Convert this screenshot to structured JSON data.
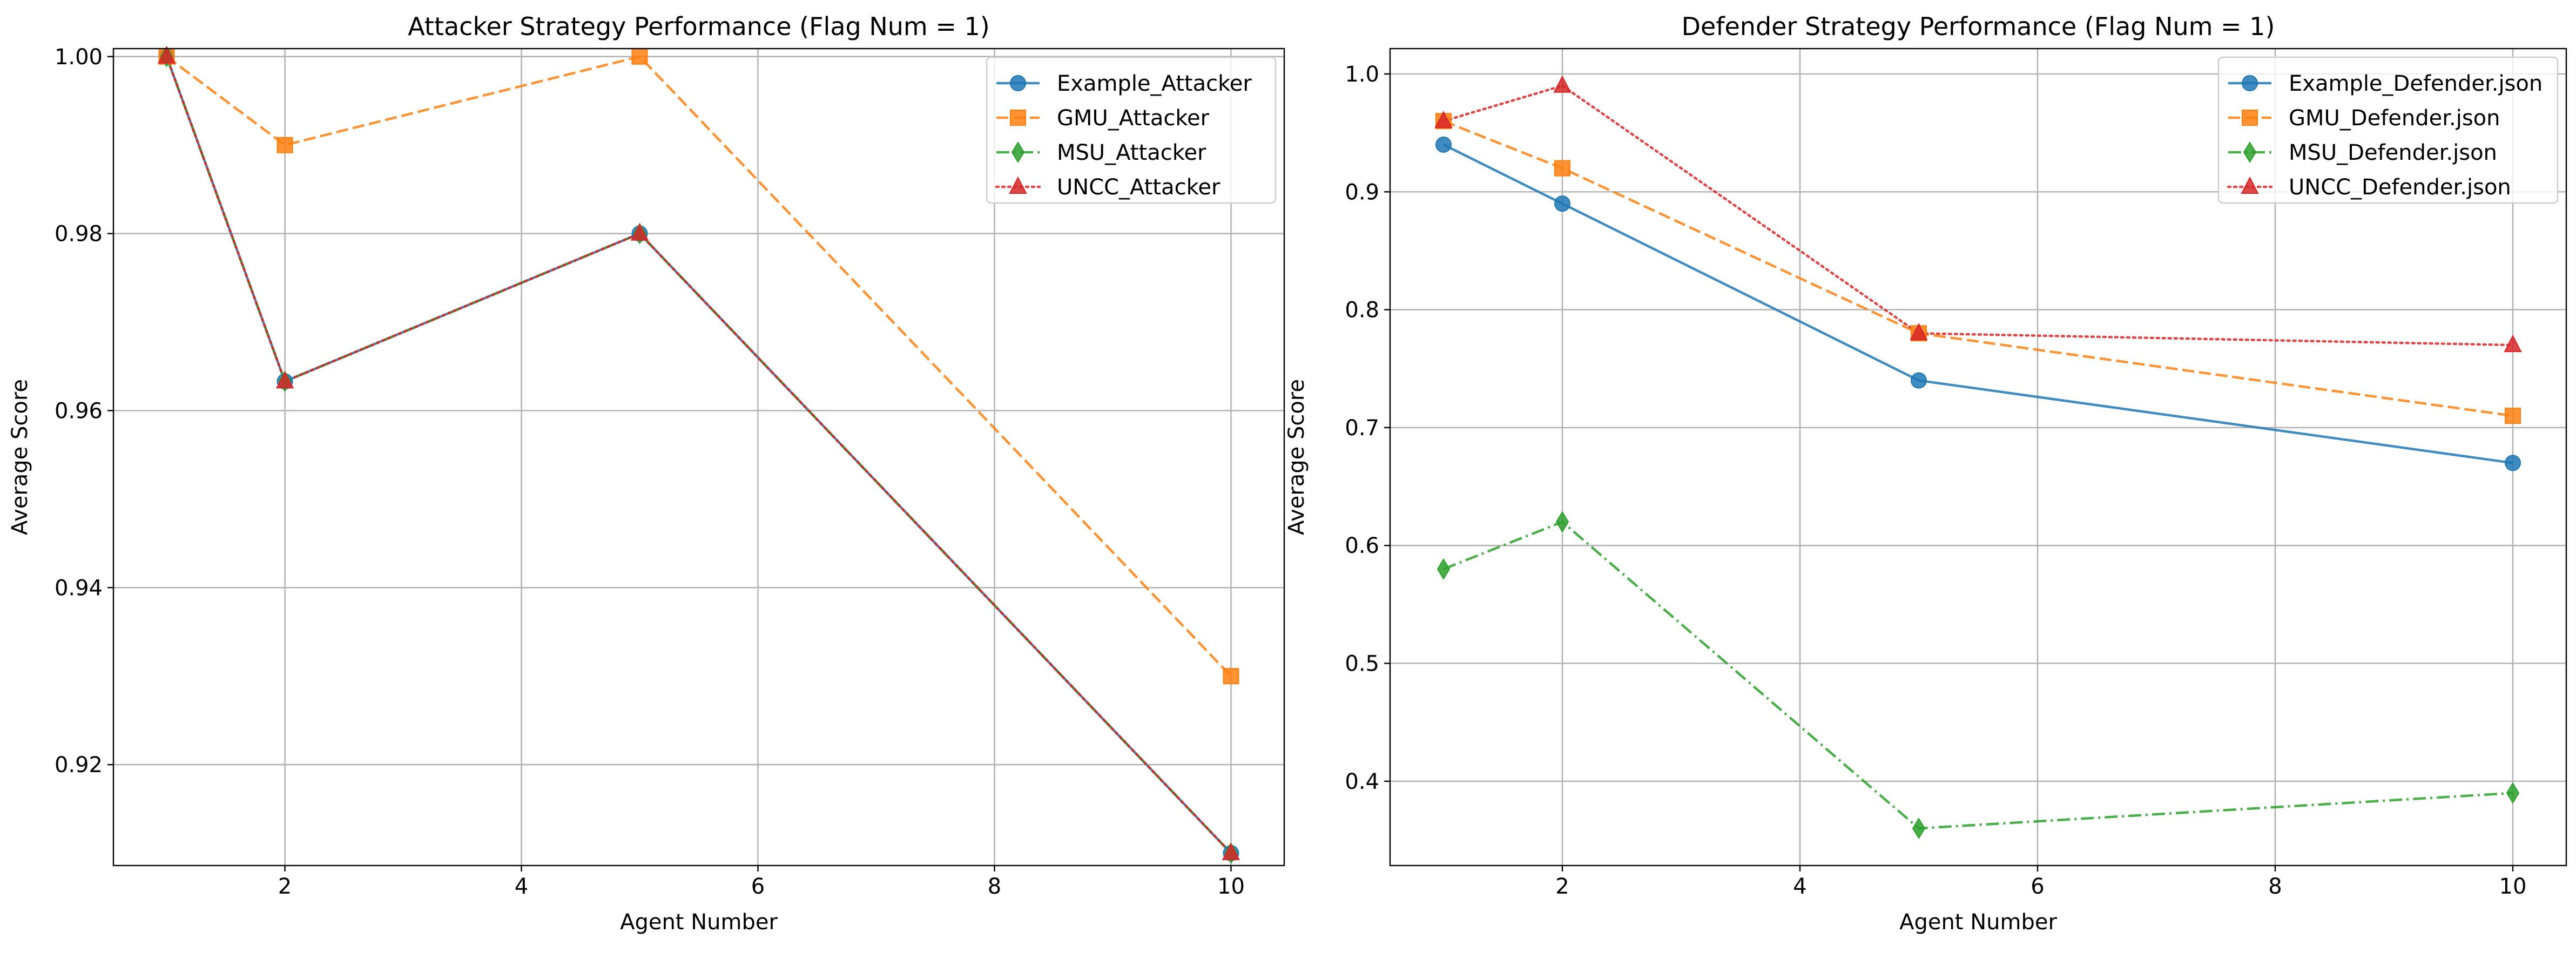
{
  "chart_data": [
    {
      "type": "line",
      "title": "Attacker Strategy Performance (Flag Num = 1)",
      "xlabel": "Agent Number",
      "ylabel": "Average Score",
      "xlim": [
        0.55,
        10.45
      ],
      "ylim": [
        0.9086,
        1.0009
      ],
      "xticks": [
        2,
        4,
        6,
        8,
        10
      ],
      "yticks": [
        0.92,
        0.94,
        0.96,
        0.98,
        1.0
      ],
      "ytick_labels": [
        "0.92",
        "0.94",
        "0.96",
        "0.98",
        "1.00"
      ],
      "grid": true,
      "legend_position": "top-right",
      "x": [
        1,
        2,
        5,
        10
      ],
      "series": [
        {
          "name": "Example_Attacker",
          "values": [
            1.0,
            0.9633,
            0.98,
            0.91
          ],
          "color": "#1f77b4",
          "marker": "circle",
          "linestyle": "solid"
        },
        {
          "name": "GMU_Attacker",
          "values": [
            1.0,
            0.99,
            1.0,
            0.93
          ],
          "color": "#ff7f0e",
          "marker": "square",
          "linestyle": "dashed"
        },
        {
          "name": "MSU_Attacker",
          "values": [
            1.0,
            0.9633,
            0.98,
            0.91
          ],
          "color": "#2ca02c",
          "marker": "thin-diamond",
          "linestyle": "dashdot"
        },
        {
          "name": "UNCC_Attacker",
          "values": [
            1.0,
            0.9633,
            0.98,
            0.91
          ],
          "color": "#d62728",
          "marker": "triangle",
          "linestyle": "dotted"
        }
      ]
    },
    {
      "type": "line",
      "title": "Defender Strategy Performance (Flag Num = 1)",
      "xlabel": "Agent Number",
      "ylabel": "Average Score",
      "xlim": [
        0.55,
        10.45
      ],
      "ylim": [
        0.3285,
        1.0215
      ],
      "xticks": [
        2,
        4,
        6,
        8,
        10
      ],
      "yticks": [
        0.4,
        0.5,
        0.6,
        0.7,
        0.8,
        0.9,
        1.0
      ],
      "ytick_labels": [
        "0.4",
        "0.5",
        "0.6",
        "0.7",
        "0.8",
        "0.9",
        "1.0"
      ],
      "grid": true,
      "legend_position": "top-right",
      "x": [
        1,
        2,
        5,
        10
      ],
      "series": [
        {
          "name": "Example_Defender.json",
          "values": [
            0.94,
            0.89,
            0.74,
            0.67
          ],
          "color": "#1f77b4",
          "marker": "circle",
          "linestyle": "solid"
        },
        {
          "name": "GMU_Defender.json",
          "values": [
            0.96,
            0.92,
            0.78,
            0.71
          ],
          "color": "#ff7f0e",
          "marker": "square",
          "linestyle": "dashed"
        },
        {
          "name": "MSU_Defender.json",
          "values": [
            0.58,
            0.62,
            0.36,
            0.39
          ],
          "color": "#2ca02c",
          "marker": "thin-diamond",
          "linestyle": "dashdot"
        },
        {
          "name": "UNCC_Defender.json",
          "values": [
            0.96,
            0.99,
            0.78,
            0.77
          ],
          "color": "#d62728",
          "marker": "triangle",
          "linestyle": "dotted"
        }
      ]
    }
  ]
}
